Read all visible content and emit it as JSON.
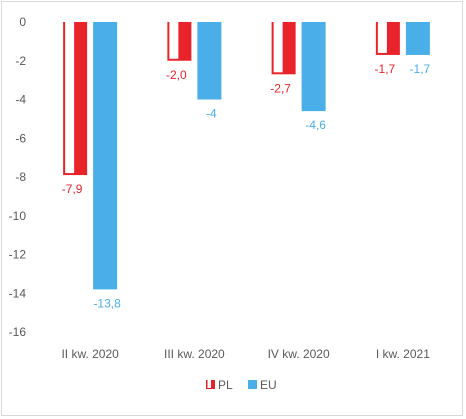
{
  "chart_data": {
    "type": "bar",
    "categories": [
      "II kw. 2020",
      "III kw. 2020",
      "IV kw. 2020",
      "I kw. 2021"
    ],
    "series": [
      {
        "name": "PL",
        "values": [
          -7.9,
          -2.0,
          -2.7,
          -1.7
        ],
        "labels": [
          "-7,9",
          "-2,0",
          "-2,7",
          "-1,7"
        ],
        "color": "#e8232a"
      },
      {
        "name": "EU",
        "values": [
          -13.8,
          -4,
          -4.6,
          -1.7
        ],
        "labels": [
          "-13,8",
          "-4",
          "-4,6",
          "-1,7"
        ],
        "color": "#4aaee8"
      }
    ],
    "ylim": [
      -16,
      0
    ],
    "yticks": [
      0,
      -2,
      -4,
      -6,
      -8,
      -10,
      -12,
      -14,
      -16
    ],
    "ytick_labels": [
      "0",
      "-2",
      "-4",
      "-6",
      "-8",
      "-10",
      "-12",
      "-14",
      "-16"
    ],
    "grid": false,
    "legend": "bottom",
    "title": "",
    "xlabel": "",
    "ylabel": ""
  }
}
